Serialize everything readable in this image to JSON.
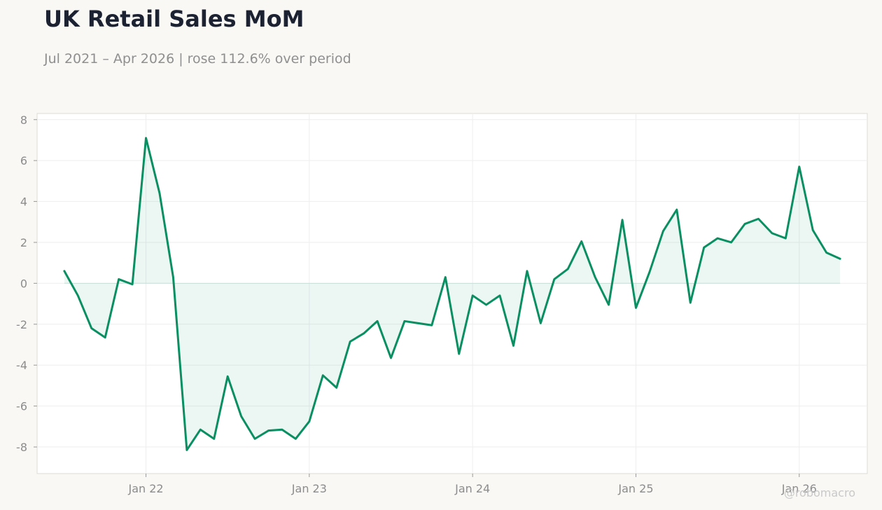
{
  "chart_data": {
    "type": "area",
    "title": "UK Retail Sales MoM",
    "subtitle": "Jul 2021 – Apr 2026 | rose 112.6% over period",
    "xlabel": "",
    "ylabel": "",
    "x_ticks": [
      "Jan 22",
      "Jan 23",
      "Jan 24",
      "Jan 25",
      "Jan 26"
    ],
    "y_ticks": [
      -8,
      -6,
      -4,
      -2,
      0,
      2,
      4,
      6,
      8
    ],
    "ylim": [
      -9.3,
      8.3
    ],
    "xlim": [
      "2021-05",
      "2026-06"
    ],
    "grid": true,
    "baseline": 0,
    "line_color": "#0a8f63",
    "fill_color": "#0a8f63",
    "x": [
      "2021-07",
      "2021-08",
      "2021-09",
      "2021-10",
      "2021-11",
      "2021-12",
      "2022-01",
      "2022-02",
      "2022-03",
      "2022-04",
      "2022-05",
      "2022-06",
      "2022-07",
      "2022-08",
      "2022-09",
      "2022-10",
      "2022-11",
      "2022-12",
      "2023-01",
      "2023-02",
      "2023-03",
      "2023-04",
      "2023-05",
      "2023-06",
      "2023-07",
      "2023-08",
      "2023-09",
      "2023-10",
      "2023-11",
      "2023-12",
      "2024-01",
      "2024-02",
      "2024-03",
      "2024-04",
      "2024-05",
      "2024-06",
      "2024-07",
      "2024-08",
      "2024-09",
      "2024-10",
      "2024-11",
      "2024-12",
      "2025-01",
      "2025-02",
      "2025-03",
      "2025-04",
      "2025-05",
      "2025-06",
      "2025-07",
      "2025-08",
      "2025-09",
      "2025-10",
      "2025-11",
      "2025-12",
      "2026-01",
      "2026-02",
      "2026-03",
      "2026-04"
    ],
    "values": [
      0.6,
      -0.6,
      -2.2,
      -2.65,
      0.2,
      -0.05,
      7.1,
      4.4,
      0.3,
      -8.15,
      -7.15,
      -7.6,
      -4.55,
      -6.5,
      -7.6,
      -7.2,
      -7.15,
      -7.6,
      -6.75,
      -4.5,
      -5.1,
      -2.85,
      -2.45,
      -1.85,
      -3.65,
      -1.85,
      -1.95,
      -2.05,
      0.3,
      -3.45,
      -0.6,
      -1.05,
      -0.6,
      -3.05,
      0.6,
      -1.95,
      0.2,
      0.7,
      2.05,
      0.3,
      -1.05,
      3.1,
      -1.2,
      0.55,
      2.55,
      3.6,
      -0.95,
      1.75,
      2.2,
      2.0,
      2.9,
      3.15,
      2.45,
      2.2,
      5.7,
      2.6,
      1.5,
      1.2
    ]
  },
  "watermark": "@robomacro"
}
